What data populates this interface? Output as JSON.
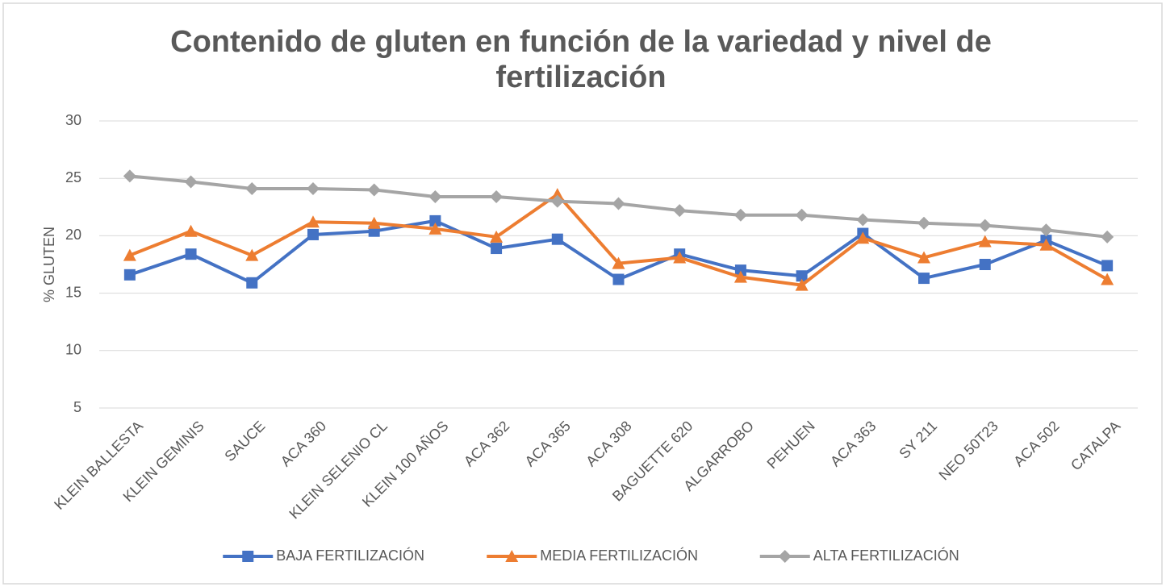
{
  "chart_data": {
    "type": "line",
    "title": "Contenido de gluten en función de la variedad y nivel de fertilización",
    "y_label": "% GLUTEN",
    "categories": [
      "KLEIN BALLESTA",
      "KLEIN GEMINIS",
      "SAUCE",
      "ACA 360",
      "KLEIN SELENIO CL",
      "KLEIN 100 AÑOS",
      "ACA 362",
      "ACA 365",
      "ACA 308",
      "BAGUETTE 620",
      "ALGARROBO",
      "PEHUEN",
      "ACA 363",
      "SY 211",
      "NEO 50T23",
      "ACA 502",
      "CATALPA"
    ],
    "series": [
      {
        "name": "BAJA FERTILIZACIÓN",
        "color": "#4472c4",
        "marker": "square",
        "values": [
          16.6,
          18.4,
          15.9,
          20.1,
          20.4,
          21.3,
          18.9,
          19.7,
          16.2,
          18.4,
          17.0,
          16.5,
          20.2,
          16.3,
          17.5,
          19.6,
          17.4
        ]
      },
      {
        "name": "MEDIA FERTILIZACIÓN",
        "color": "#ed7d31",
        "marker": "triangle",
        "values": [
          18.3,
          20.4,
          18.3,
          21.2,
          21.1,
          20.6,
          19.9,
          23.6,
          17.6,
          18.1,
          16.4,
          15.7,
          19.8,
          18.1,
          19.5,
          19.2,
          16.2
        ]
      },
      {
        "name": "ALTA FERTILIZACIÓN",
        "color": "#a5a5a5",
        "marker": "diamond",
        "values": [
          25.2,
          24.7,
          24.1,
          24.1,
          24.0,
          23.4,
          23.4,
          23.0,
          22.8,
          22.2,
          21.8,
          21.8,
          21.4,
          21.1,
          20.9,
          20.5,
          19.9
        ]
      }
    ],
    "ylim": [
      5,
      30
    ],
    "yticks": [
      5,
      10,
      15,
      20,
      25,
      30
    ],
    "grid": true,
    "legend": "bottom"
  }
}
